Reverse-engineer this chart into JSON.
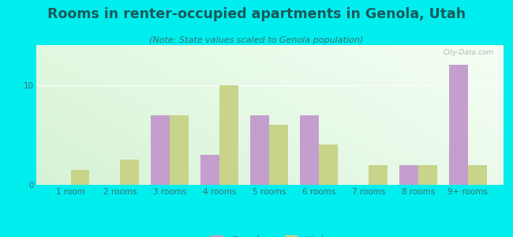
{
  "title": "Rooms in renter-occupied apartments in Genola, Utah",
  "subtitle": "(Note: State values scaled to Genola population)",
  "categories": [
    "1 room",
    "2 rooms",
    "3 rooms",
    "4 rooms",
    "5 rooms",
    "6 rooms",
    "7 rooms",
    "8 rooms",
    "9+ rooms"
  ],
  "genola": [
    0,
    0,
    7,
    3,
    7,
    7,
    0,
    2,
    12
  ],
  "utah": [
    1.5,
    2.5,
    7,
    10,
    6,
    4,
    2,
    2,
    2
  ],
  "genola_color": "#c49fcd",
  "utah_color": "#c8d48a",
  "background_color": "#00eeee",
  "title_color": "#1a5a5a",
  "subtitle_color": "#3a7070",
  "tick_color": "#3a7070",
  "ylim": [
    0,
    14
  ],
  "yticks": [
    0,
    10
  ],
  "bar_width": 0.38,
  "title_fontsize": 12.5,
  "subtitle_fontsize": 8,
  "legend_fontsize": 9,
  "tick_fontsize": 7.5
}
